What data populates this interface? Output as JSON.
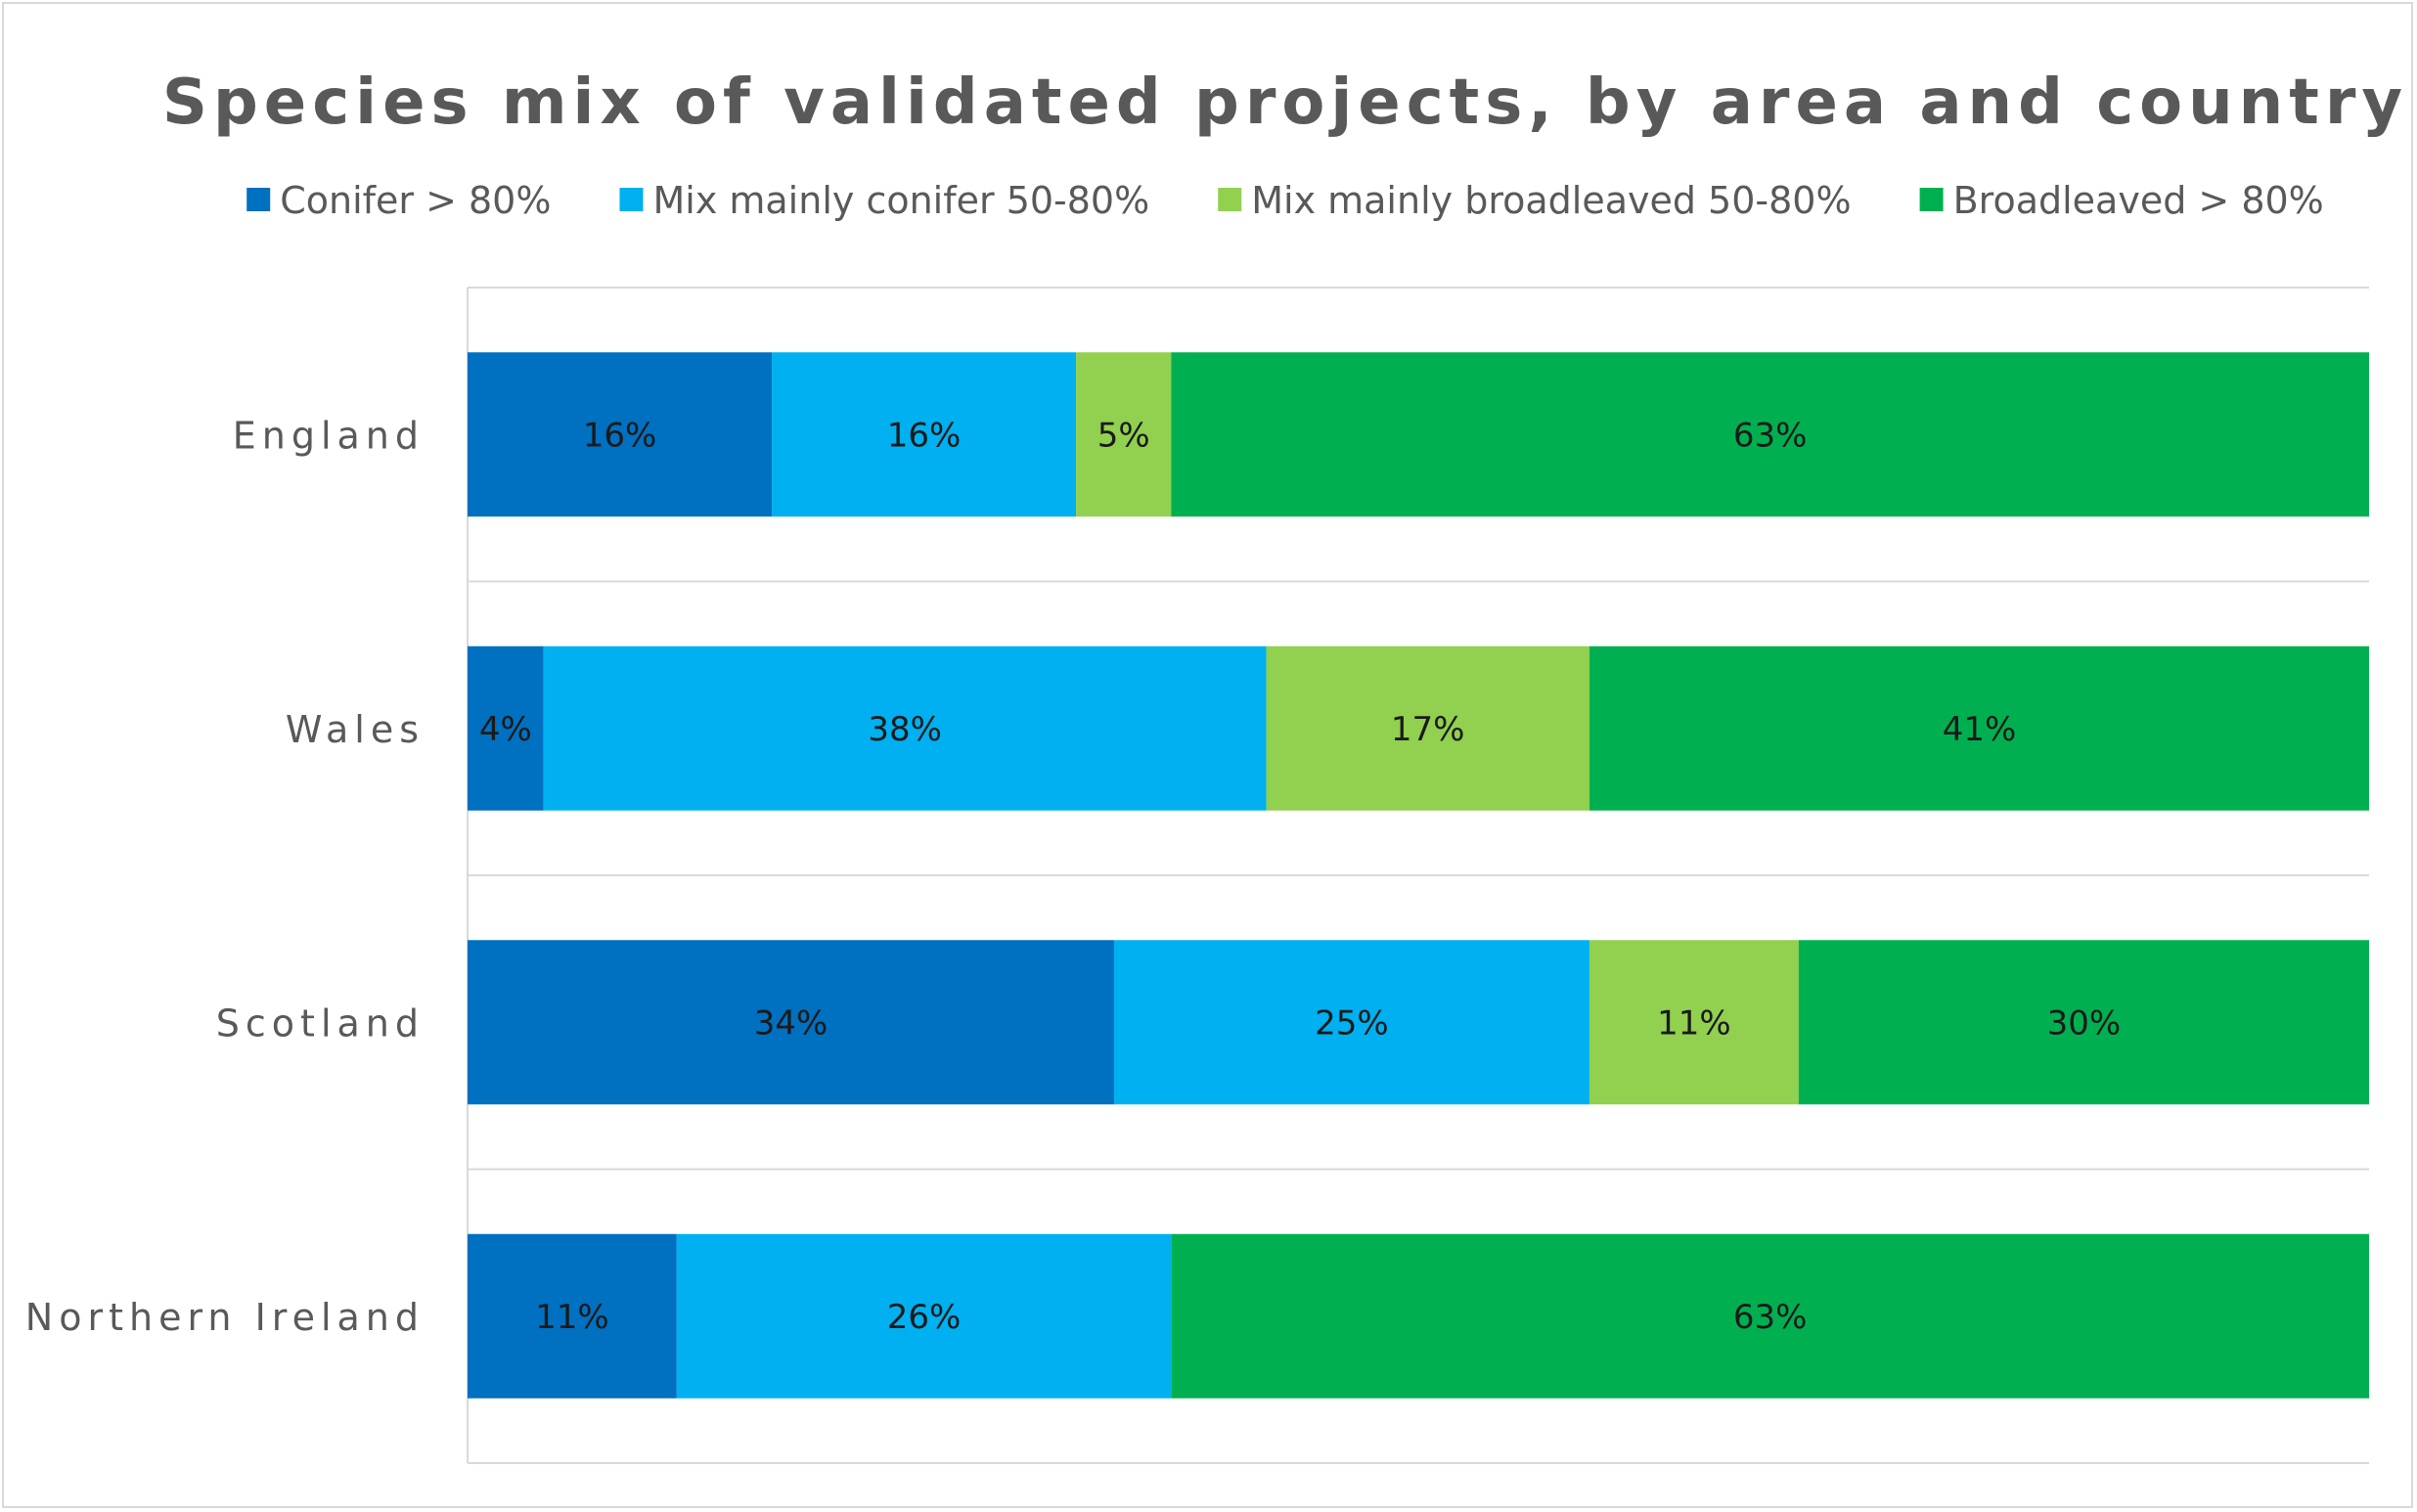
{
  "chart_data": {
    "type": "bar",
    "orientation": "horizontal",
    "stacked": "percent",
    "title": "Species mix of validated projects, by area and country",
    "categories": [
      "England",
      "Wales",
      "Scotland",
      "Northern Ireland"
    ],
    "series": [
      {
        "name": "Conifer > 80%",
        "color": "#0070c0",
        "values": [
          16,
          4,
          34,
          11
        ],
        "labels": [
          "16%",
          "4%",
          "34%",
          "11%"
        ]
      },
      {
        "name": "Mix mainly conifer 50-80%",
        "color": "#00b0f0",
        "values": [
          16,
          38,
          25,
          26
        ],
        "labels": [
          "16%",
          "38%",
          "25%",
          "26%"
        ]
      },
      {
        "name": "Mix mainly broadleaved 50-80%",
        "color": "#92d050",
        "values": [
          5,
          17,
          11,
          0
        ],
        "labels": [
          "5%",
          "17%",
          "11%",
          ""
        ]
      },
      {
        "name": "Broadleaved > 80%",
        "color": "#00b050",
        "values": [
          63,
          41,
          30,
          63
        ],
        "labels": [
          "63%",
          "41%",
          "30%",
          "63%"
        ]
      }
    ],
    "xlim": [
      0,
      100
    ],
    "xlabel": "",
    "ylabel": "",
    "grid": true,
    "legend": "top"
  }
}
